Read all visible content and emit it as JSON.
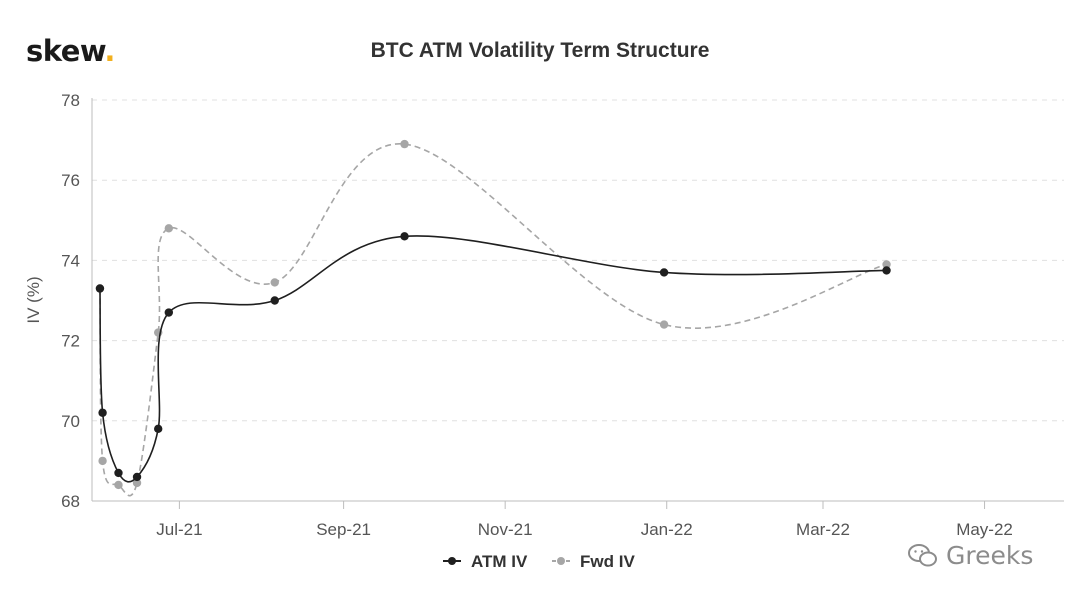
{
  "logo": {
    "text": "skew",
    "dot": "."
  },
  "watermark": {
    "text": "Greeks",
    "icon": "wechat-icon"
  },
  "chart_data": {
    "type": "line",
    "title": "BTC ATM Volatility Term Structure",
    "ylabel": "IV (%)",
    "xlabel": "",
    "ylim": [
      68,
      78
    ],
    "yticks": [
      68,
      70,
      72,
      74,
      76,
      78
    ],
    "xlim": [
      "2021-05-29",
      "2022-05-31"
    ],
    "xticks": [
      {
        "date": "2021-07-01",
        "label": "Jul-21"
      },
      {
        "date": "2021-09-01",
        "label": "Sep-21"
      },
      {
        "date": "2021-11-01",
        "label": "Nov-21"
      },
      {
        "date": "2022-01-01",
        "label": "Jan-22"
      },
      {
        "date": "2022-03-01",
        "label": "Mar-22"
      },
      {
        "date": "2022-05-01",
        "label": "May-22"
      }
    ],
    "grid": "horizontal dashed",
    "legend": "bottom-center",
    "series": [
      {
        "name": "ATM IV",
        "color": "#1f1f1f",
        "style": "solid",
        "points": [
          [
            "2021-06-01",
            73.3
          ],
          [
            "2021-06-02",
            70.2
          ],
          [
            "2021-06-08",
            68.7
          ],
          [
            "2021-06-15",
            68.6
          ],
          [
            "2021-06-23",
            69.8
          ],
          [
            "2021-06-27",
            72.7
          ],
          [
            "2021-08-06",
            73.0
          ],
          [
            "2021-09-24",
            74.6
          ],
          [
            "2021-12-31",
            73.7
          ],
          [
            "2022-03-25",
            73.75
          ]
        ]
      },
      {
        "name": "Fwd IV",
        "color": "#a6a6a6",
        "style": "dashed",
        "points": [
          [
            "2021-06-01",
            73.3
          ],
          [
            "2021-06-02",
            69.0
          ],
          [
            "2021-06-08",
            68.4
          ],
          [
            "2021-06-15",
            68.45
          ],
          [
            "2021-06-23",
            72.2
          ],
          [
            "2021-06-27",
            74.8
          ],
          [
            "2021-08-06",
            73.45
          ],
          [
            "2021-09-24",
            76.9
          ],
          [
            "2021-12-31",
            72.4
          ],
          [
            "2022-03-25",
            73.9
          ]
        ]
      }
    ]
  }
}
